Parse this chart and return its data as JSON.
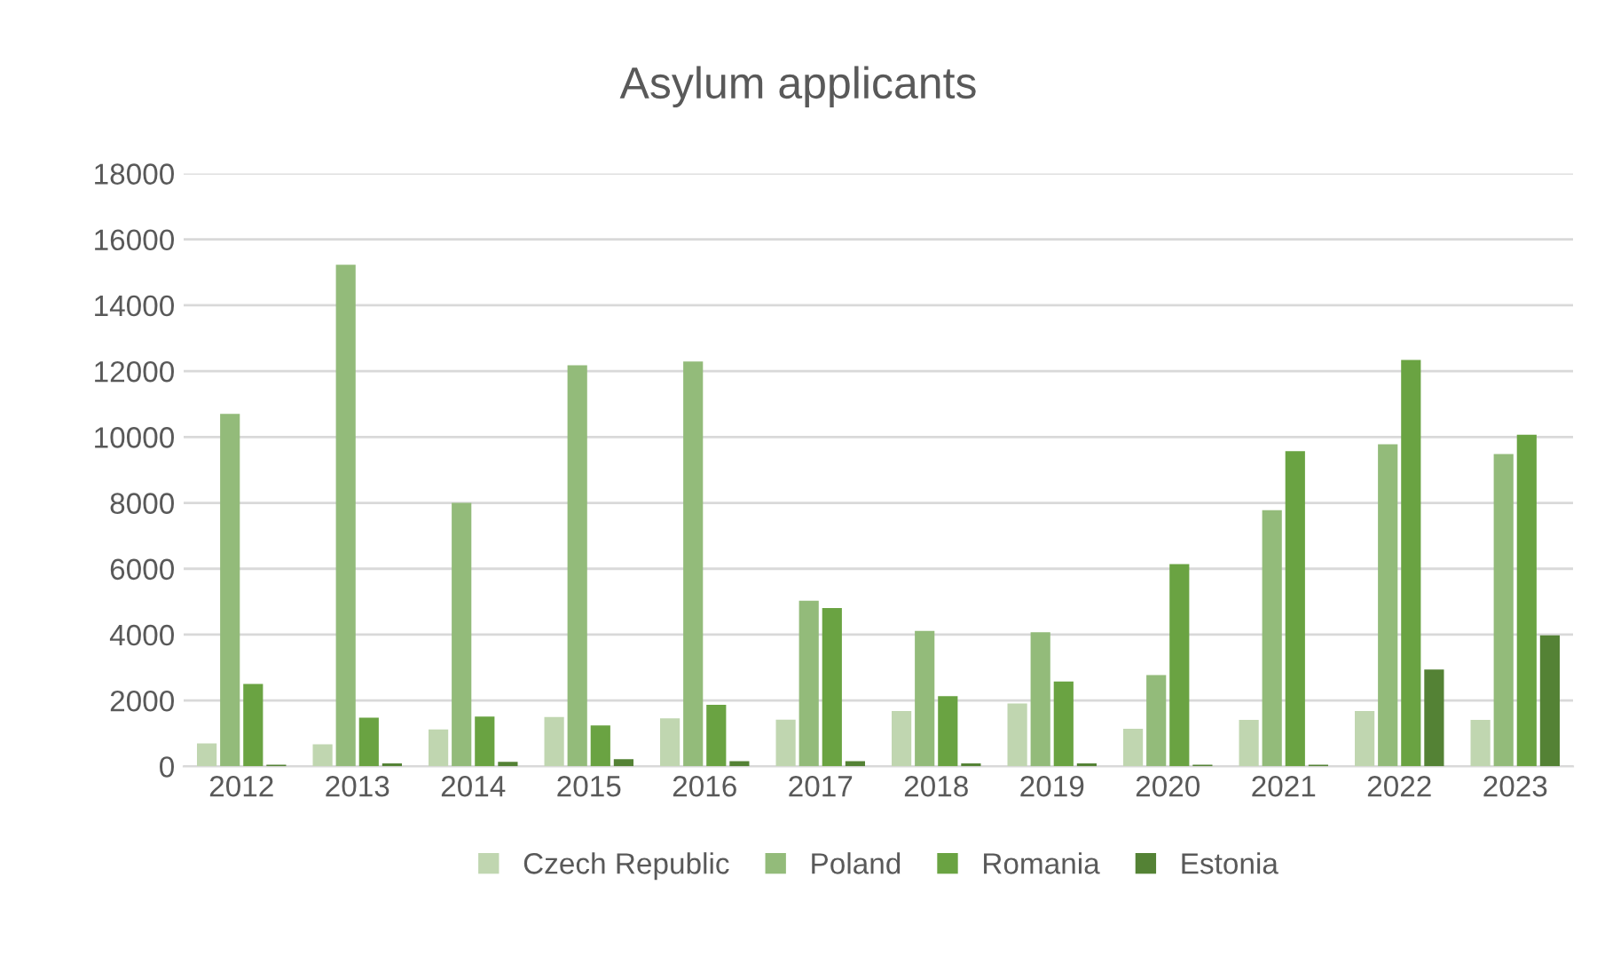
{
  "chart_data": {
    "type": "bar",
    "title": "Asylum applicants",
    "categories": [
      "2012",
      "2013",
      "2014",
      "2015",
      "2016",
      "2017",
      "2018",
      "2019",
      "2020",
      "2021",
      "2022",
      "2023"
    ],
    "series": [
      {
        "name": "Czech Republic",
        "color": "#c0d6b0",
        "values": [
          700,
          670,
          1120,
          1500,
          1460,
          1420,
          1680,
          1910,
          1140,
          1410,
          1680,
          1410
        ]
      },
      {
        "name": "Poland",
        "color": "#93bb7a",
        "values": [
          10700,
          15230,
          8000,
          12180,
          12290,
          5030,
          4110,
          4070,
          2770,
          7780,
          9780,
          9480
        ]
      },
      {
        "name": "Romania",
        "color": "#6aa342",
        "values": [
          2500,
          1480,
          1510,
          1240,
          1870,
          4810,
          2130,
          2580,
          6140,
          9570,
          12340,
          10070
        ]
      },
      {
        "name": "Estonia",
        "color": "#548235",
        "values": [
          50,
          90,
          140,
          220,
          160,
          160,
          90,
          90,
          50,
          50,
          2940,
          3980
        ]
      }
    ],
    "ylim": [
      0,
      18000
    ],
    "yticks": [
      0,
      2000,
      4000,
      6000,
      8000,
      10000,
      12000,
      14000,
      16000,
      18000
    ],
    "grid": "y",
    "legend": "bottom"
  }
}
